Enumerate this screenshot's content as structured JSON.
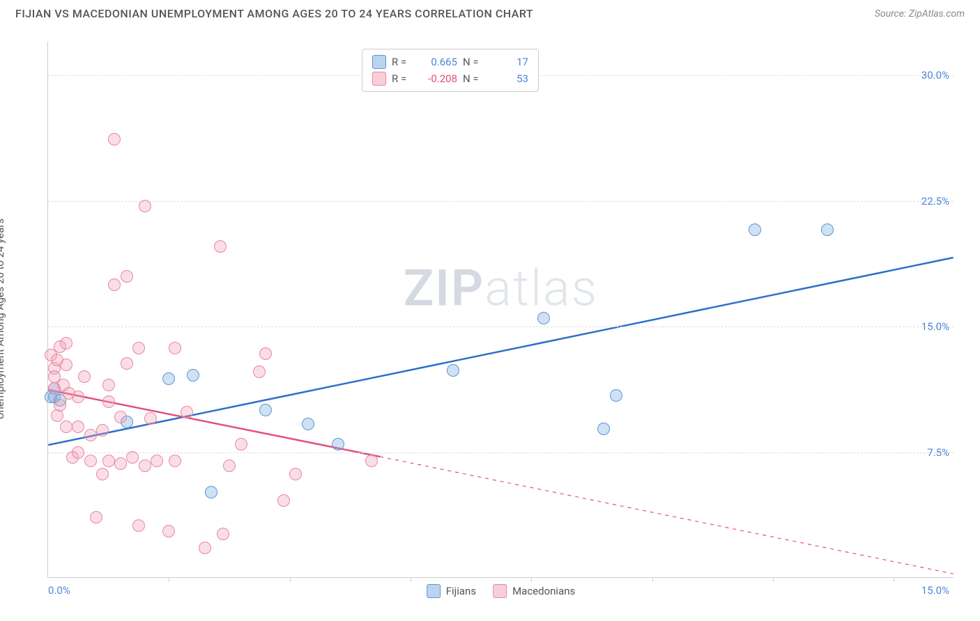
{
  "title": "FIJIAN VS MACEDONIAN UNEMPLOYMENT AMONG AGES 20 TO 24 YEARS CORRELATION CHART",
  "source": "Source: ZipAtlas.com",
  "watermark": {
    "bold": "ZIP",
    "light": "atlas"
  },
  "chart": {
    "type": "scatter",
    "y_axis_label": "Unemployment Among Ages 20 to 24 years",
    "xlim": [
      0,
      15
    ],
    "ylim": [
      0,
      32
    ],
    "x_ticks": [
      2,
      4,
      6,
      8,
      10,
      12,
      14
    ],
    "x_min_label": "0.0%",
    "x_max_label": "15.0%",
    "y_ticks": [
      {
        "v": 7.5,
        "label": "7.5%"
      },
      {
        "v": 15.0,
        "label": "15.0%"
      },
      {
        "v": 22.5,
        "label": "22.5%"
      },
      {
        "v": 30.0,
        "label": "30.0%"
      }
    ],
    "axis_label_color": "#4a86d8",
    "grid_color": "#dddddd",
    "background_color": "#ffffff",
    "series": [
      {
        "name": "Fijians",
        "label": "Fijians",
        "color_fill": "rgba(120,170,220,0.35)",
        "color_stroke": "#5a95d6",
        "trend_color": "#2f6fc7",
        "r": 0.665,
        "n": 17,
        "trend": {
          "x1": 0,
          "y1": 7.9,
          "x2": 15,
          "y2": 19.1
        },
        "points": [
          [
            0.05,
            10.8
          ],
          [
            0.1,
            10.8
          ],
          [
            0.1,
            11.3
          ],
          [
            0.2,
            10.6
          ],
          [
            1.3,
            9.3
          ],
          [
            2.0,
            11.9
          ],
          [
            2.4,
            12.1
          ],
          [
            2.7,
            5.1
          ],
          [
            3.6,
            10.0
          ],
          [
            4.3,
            9.2
          ],
          [
            4.8,
            8.0
          ],
          [
            6.7,
            12.4
          ],
          [
            8.2,
            15.5
          ],
          [
            9.4,
            10.9
          ],
          [
            9.2,
            8.9
          ],
          [
            11.7,
            20.8
          ],
          [
            12.9,
            20.8
          ]
        ]
      },
      {
        "name": "Macedonians",
        "label": "Macedonians",
        "color_fill": "rgba(240,160,180,0.35)",
        "color_stroke": "#e985a3",
        "trend_color": "#e24f78",
        "r": -0.208,
        "n": 53,
        "trend": {
          "x1": 0,
          "y1": 11.2,
          "x2": 5.5,
          "y2": 7.2,
          "dash_to_x": 15,
          "dash_to_y": 0.2
        },
        "points": [
          [
            0.05,
            13.3
          ],
          [
            0.1,
            12.5
          ],
          [
            0.1,
            12.0
          ],
          [
            0.1,
            11.3
          ],
          [
            0.15,
            13.0
          ],
          [
            0.15,
            9.7
          ],
          [
            0.2,
            10.3
          ],
          [
            0.2,
            13.8
          ],
          [
            0.25,
            11.5
          ],
          [
            0.3,
            14.0
          ],
          [
            0.3,
            12.7
          ],
          [
            0.3,
            9.0
          ],
          [
            0.35,
            11.0
          ],
          [
            0.4,
            7.2
          ],
          [
            0.5,
            7.5
          ],
          [
            0.5,
            10.8
          ],
          [
            0.5,
            9.0
          ],
          [
            0.6,
            12.0
          ],
          [
            0.7,
            7.0
          ],
          [
            0.7,
            8.5
          ],
          [
            0.8,
            3.6
          ],
          [
            0.9,
            6.2
          ],
          [
            0.9,
            8.8
          ],
          [
            1.0,
            10.5
          ],
          [
            1.0,
            11.5
          ],
          [
            1.0,
            7.0
          ],
          [
            1.1,
            26.2
          ],
          [
            1.1,
            17.5
          ],
          [
            1.2,
            9.6
          ],
          [
            1.2,
            6.8
          ],
          [
            1.3,
            18.0
          ],
          [
            1.3,
            12.8
          ],
          [
            1.4,
            7.2
          ],
          [
            1.5,
            3.1
          ],
          [
            1.5,
            13.7
          ],
          [
            1.6,
            22.2
          ],
          [
            1.6,
            6.7
          ],
          [
            1.7,
            9.5
          ],
          [
            1.8,
            7.0
          ],
          [
            2.0,
            2.8
          ],
          [
            2.1,
            13.7
          ],
          [
            2.1,
            7.0
          ],
          [
            2.3,
            9.9
          ],
          [
            2.6,
            1.8
          ],
          [
            2.85,
            19.8
          ],
          [
            2.9,
            2.6
          ],
          [
            3.0,
            6.7
          ],
          [
            3.2,
            8.0
          ],
          [
            3.5,
            12.3
          ],
          [
            3.6,
            13.4
          ],
          [
            3.9,
            4.6
          ],
          [
            4.1,
            6.2
          ],
          [
            5.35,
            7.0
          ]
        ]
      }
    ],
    "legend_top": {
      "rows": [
        {
          "swatch": "blue",
          "r_label": "R =",
          "r_val": "0.665",
          "r_color": "#4a86d8",
          "n_label": "N =",
          "n_val": "17",
          "n_color": "#4a86d8"
        },
        {
          "swatch": "pink",
          "r_label": "R =",
          "r_val": "-0.208",
          "r_color": "#e24f78",
          "n_label": "N =",
          "n_val": "53",
          "n_color": "#4a86d8"
        }
      ]
    },
    "legend_bottom": [
      {
        "swatch": "blue",
        "label": "Fijians"
      },
      {
        "swatch": "pink",
        "label": "Macedonians"
      }
    ]
  }
}
